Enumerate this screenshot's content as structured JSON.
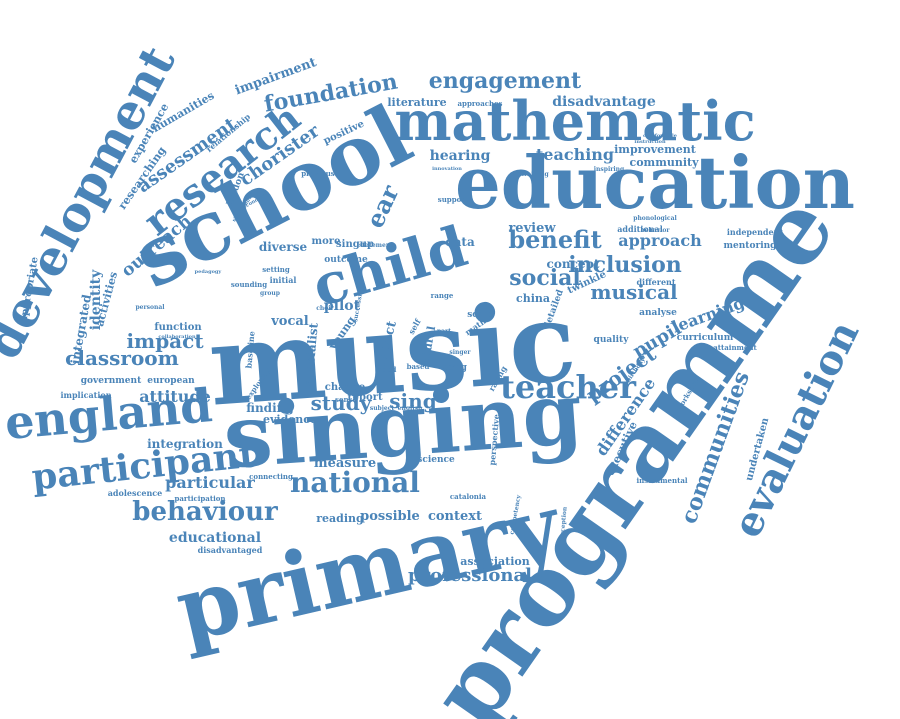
{
  "color": "#4a84b8",
  "words": [
    "music",
    "singing",
    "programme",
    "primary",
    "school",
    "education",
    "child",
    "mathematic",
    "development",
    "england",
    "research",
    "evaluation",
    "participant",
    "teacher",
    "national",
    "behaviour",
    "communities",
    "engagement",
    "foundation",
    "assessment",
    "chorister",
    "benefit",
    "inclusion",
    "social",
    "musical",
    "project",
    "classroom",
    "impact",
    "attitude",
    "pupil",
    "learning",
    "professional",
    "outreach",
    "study",
    "sing",
    "educational",
    "teaching",
    "hearing",
    "approach",
    "identity",
    "activities",
    "integrated",
    "appropriate",
    "particular",
    "integration",
    "measure",
    "possible",
    "context",
    "reading",
    "association",
    "difference",
    "executive",
    "undertaken",
    "literature",
    "disadvantage",
    "improvement",
    "community",
    "impairment",
    "humanities",
    "experience",
    "researching",
    "relationship",
    "london",
    "positive",
    "previous",
    "singup",
    "outcome",
    "ear",
    "diverse",
    "pilot",
    "vocal",
    "specialist",
    "young",
    "aspect",
    "finding",
    "evidence",
    "change",
    "report",
    "data",
    "review",
    "concept",
    "china",
    "twinkle",
    "analyse",
    "quality",
    "curriculum",
    "mentoring",
    "independent",
    "additional",
    "different",
    "attainment",
    "function",
    "government",
    "european",
    "implication",
    "adolescence",
    "participation",
    "disadvantaged",
    "connecting",
    "science",
    "perspective",
    "song",
    "rating",
    "instrumental",
    "workshop",
    "perception",
    "competency",
    "catalonia",
    "based",
    "plural",
    "scale",
    "range",
    "support",
    "approaches",
    "training",
    "inspiring",
    "collaboration",
    "baseline",
    "exploring",
    "setting",
    "initial",
    "sounding",
    "personal",
    "more",
    "sense",
    "detailed",
    "math",
    "aged",
    "self",
    "birthday",
    "singer",
    "subject",
    "english",
    "choir",
    "successful",
    "statement",
    "part",
    "group",
    "phonological",
    "behavior",
    "innovation",
    "comfortable",
    "significant",
    "pedagogy",
    "secondary",
    "instruction"
  ]
}
